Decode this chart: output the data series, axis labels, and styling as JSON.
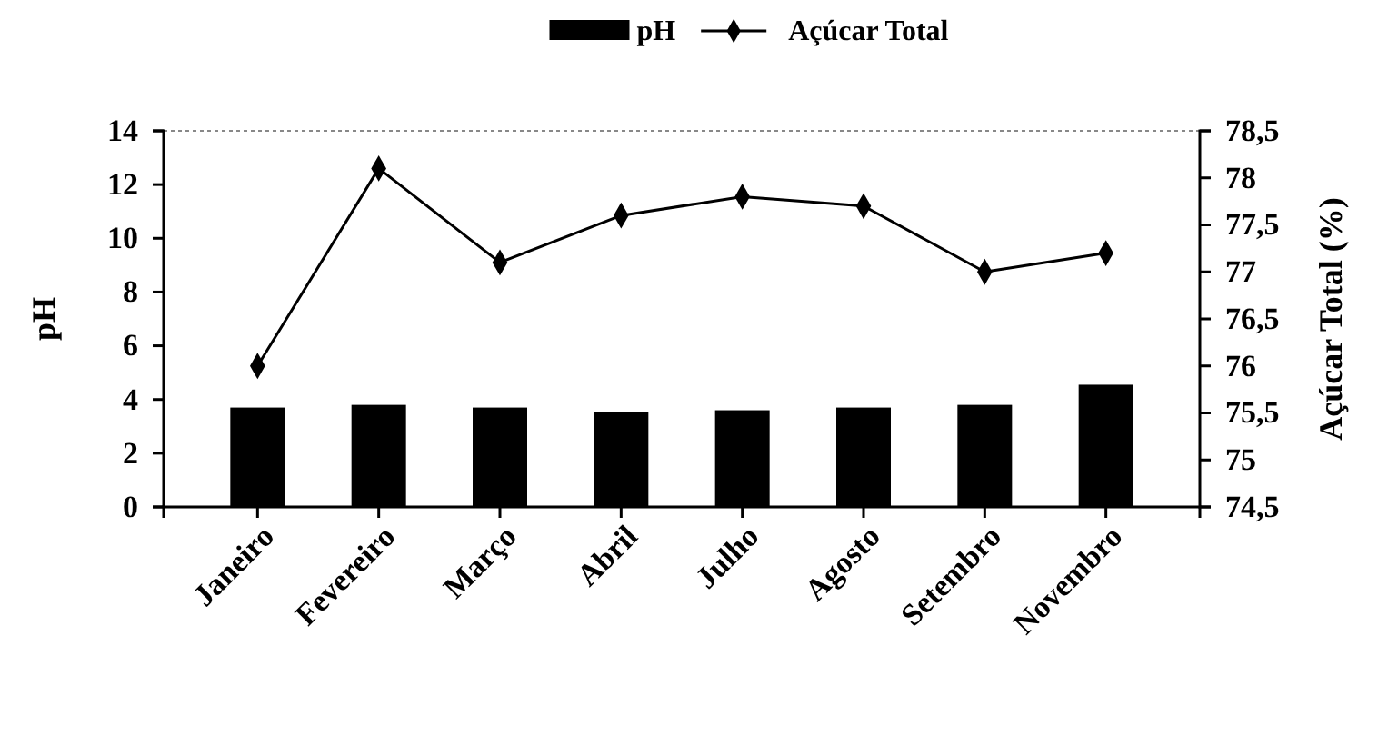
{
  "chart_data": {
    "type": "bar",
    "ylabel": "pH",
    "y2label": "Açúcar Total (%)",
    "categories": [
      "Janeiro",
      "Fevereiro",
      "Março",
      "Abril",
      "Julho",
      "Agosto",
      "Setembro",
      "Novembro"
    ],
    "series": [
      {
        "name": "pH",
        "color": "#000000",
        "values": [
          3.7,
          3.8,
          3.7,
          3.55,
          3.6,
          3.7,
          3.8,
          4.55
        ]
      },
      {
        "name": "Açúcar Total",
        "type": "line",
        "axis": "y2",
        "color": "#000000",
        "marker": "diamond",
        "values": [
          76.0,
          78.1,
          77.1,
          77.6,
          77.8,
          77.7,
          77.0,
          77.2
        ]
      }
    ],
    "ylim": [
      0,
      14
    ],
    "yticks": [
      0,
      2,
      4,
      6,
      8,
      10,
      12,
      14
    ],
    "y2lim": [
      74.5,
      78.5
    ],
    "y2ticks": [
      {
        "value": 74.5,
        "label": "74,5"
      },
      75,
      {
        "value": 75.5,
        "label": "75,5"
      },
      76,
      {
        "value": 76.5,
        "label": "76,5"
      },
      77,
      {
        "value": 77.5,
        "label": "77,5"
      },
      78,
      {
        "value": 78.5,
        "label": "78,5"
      }
    ],
    "legend": "top"
  }
}
